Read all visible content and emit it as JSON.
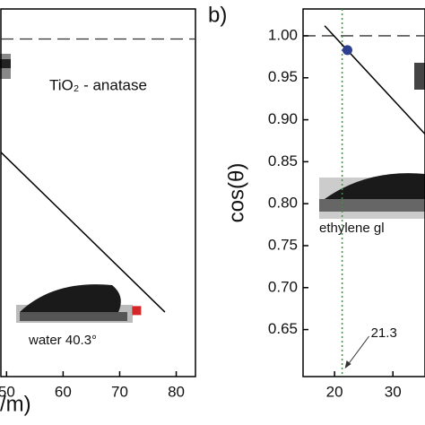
{
  "chart_data": [
    {
      "type": "line",
      "xlabel": "/m)",
      "annotations": [
        "TiO₂ - anatase",
        "water 40.3°"
      ],
      "xlim": [
        49,
        83.4
      ],
      "xticks": [
        50,
        60,
        70,
        80
      ],
      "ylim": [
        0.55,
        1.04
      ],
      "hline": 1.0,
      "series": [
        {
          "x": [
            49,
            78
          ],
          "values": [
            0.849,
            0.636
          ],
          "color": "#000000"
        },
        {
          "x": [
            73
          ],
          "values": [
            0.638
          ],
          "color": "#d62728",
          "marker": "square"
        }
      ]
    },
    {
      "type": "line",
      "panel_label": "b)",
      "ylabel": "cos(θ)",
      "annotations": [
        "ethylene gl"
      ],
      "xlim": [
        14.6,
        35.5
      ],
      "xticks": [
        20,
        30
      ],
      "ylim": [
        0.594,
        1.032
      ],
      "yticks": [
        {
          "value": 1.0,
          "label": "1.00"
        },
        0.95,
        {
          "value": 0.9,
          "label": "0.90"
        },
        0.85,
        {
          "value": 0.8,
          "label": "0.80"
        },
        0.75,
        {
          "value": 0.7,
          "label": "0.70"
        },
        0.65
      ],
      "hline": 1.0,
      "vline": 21.3,
      "vline_color": "#2ca02c",
      "series": [
        {
          "x": [
            18.3,
            35.5
          ],
          "values": [
            1.012,
            0.883
          ],
          "color": "#000000"
        },
        {
          "x": [
            22.2
          ],
          "values": [
            0.983
          ],
          "color": "#2f3f8f",
          "marker": "circle"
        }
      ]
    }
  ]
}
